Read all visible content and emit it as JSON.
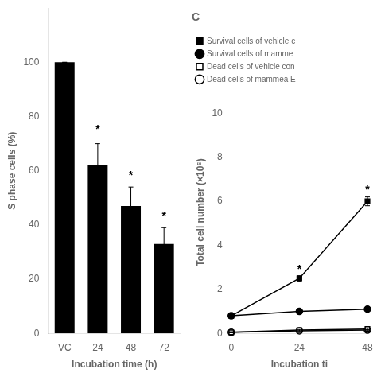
{
  "chart_data": [
    {
      "type": "bar",
      "categories": [
        "VC",
        "24",
        "48",
        "72"
      ],
      "values": [
        100,
        62,
        47,
        33
      ],
      "errors": [
        0,
        8,
        7,
        6
      ],
      "color": "#000000",
      "xlabel": "Incubation time (h)",
      "ylabel": "S phase cells (%)",
      "ylim": [
        0,
        120
      ],
      "yticks": [
        0,
        20,
        40,
        60,
        80,
        100
      ],
      "grid": false,
      "annotations": [
        {
          "x": "24",
          "y": 74,
          "text": "*"
        },
        {
          "x": "48",
          "y": 57,
          "text": "*"
        },
        {
          "x": "72",
          "y": 42,
          "text": "*"
        }
      ]
    },
    {
      "type": "line",
      "title": "C",
      "x": [
        0,
        24,
        48
      ],
      "series": [
        {
          "name": "Survival cells of vehicle c",
          "color": "#000000",
          "marker": "square",
          "line_style": "solid",
          "values": [
            0.8,
            2.5,
            6.0
          ],
          "errors": [
            0.05,
            0.12,
            0.2
          ]
        },
        {
          "name": "Survival cells of mamme",
          "color": "#000000",
          "marker": "circle",
          "line_style": "solid",
          "values": [
            0.8,
            1.0,
            1.1
          ],
          "errors": [
            0.05,
            0.05,
            0.06
          ]
        },
        {
          "name": "Dead cells of vehicle con",
          "color": "#000000",
          "marker": "square-open",
          "line_style": "solid",
          "values": [
            0.05,
            0.15,
            0.2
          ],
          "errors": [
            0.02,
            0.03,
            0.04
          ]
        },
        {
          "name": "Dead cells of mammea E",
          "color": "#000000",
          "marker": "circle-open",
          "line_style": "solid",
          "values": [
            0.05,
            0.12,
            0.15
          ],
          "errors": [
            0.02,
            0.03,
            0.03
          ]
        }
      ],
      "xlabel": "Incubation ti",
      "ylabel": "Total cell number (×10⁶)",
      "xlim": [
        0,
        48
      ],
      "xticks": [
        0,
        24,
        48
      ],
      "ylim": [
        0,
        11
      ],
      "yticks": [
        0,
        2,
        4,
        6,
        8,
        10
      ],
      "legend": "upper left",
      "grid": false,
      "annotations": [
        {
          "x": 24,
          "y": 2.75,
          "text": "*"
        },
        {
          "x": 48,
          "y": 6.35,
          "text": "*"
        }
      ]
    }
  ]
}
